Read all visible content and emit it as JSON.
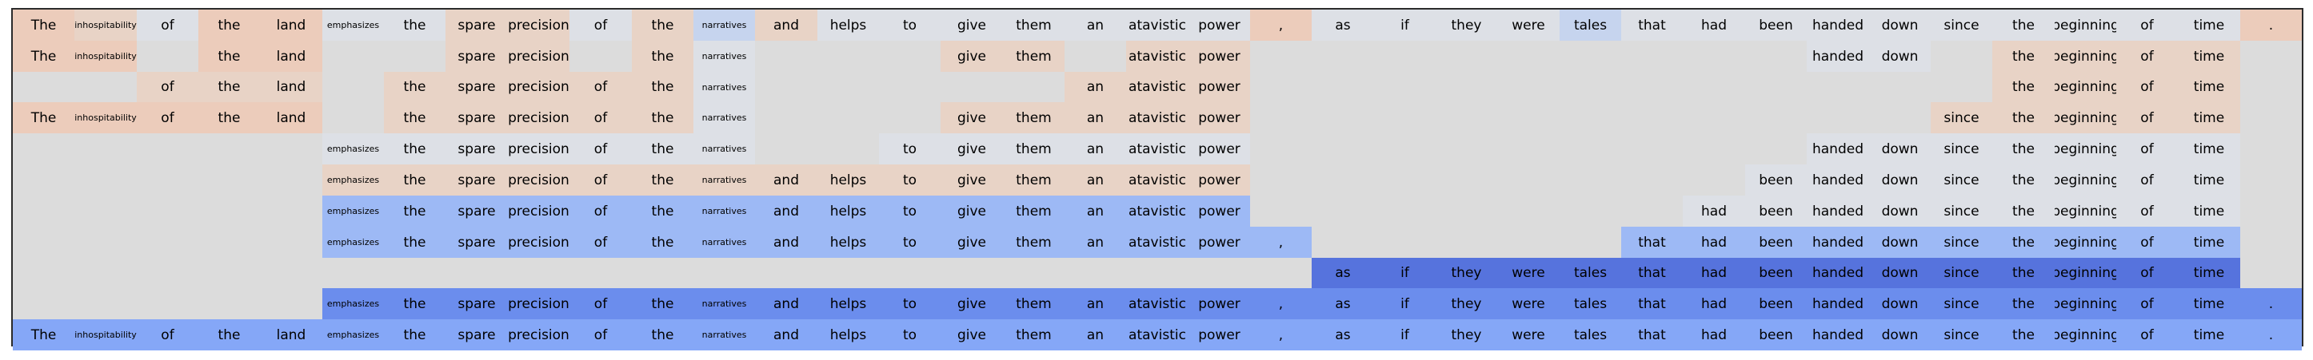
{
  "chart_data": {
    "type": "heatmap",
    "tokens": [
      "The",
      "inhospitability",
      "of",
      "the",
      "land",
      "emphasizes",
      "the",
      "spare",
      "precision",
      "of",
      "the",
      "narratives",
      "and",
      "helps",
      "to",
      "give",
      "them",
      "an",
      "atavistic",
      "power",
      ",",
      "as",
      "if",
      "they",
      "were",
      "tales",
      "that",
      "had",
      "been",
      "handed",
      "down",
      "since",
      "the",
      "beginning",
      "of",
      "time",
      "."
    ],
    "small_tokens": [
      1,
      5,
      11
    ],
    "colors": {
      "empty": "#dcdcdc",
      "a": "#e8d3c6",
      "b": "#ecccbb",
      "c": "#dde0e6",
      "d": "#c6d4ee",
      "e": "#9db9f5",
      "f": "#85a7f7",
      "g": "#6b8ded",
      "h": "#5673dd"
    },
    "rows": [
      {
        "shown": [
          0,
          1,
          2,
          3,
          4,
          5,
          6,
          7,
          8,
          9,
          10,
          11,
          12,
          13,
          14,
          15,
          16,
          17,
          18,
          19,
          20,
          21,
          22,
          23,
          24,
          25,
          26,
          27,
          28,
          29,
          30,
          31,
          32,
          33,
          34,
          35,
          36
        ],
        "shade": [
          "b",
          "a",
          "c",
          "b",
          "b",
          "c",
          "c",
          "a",
          "a",
          "c",
          "a",
          "d",
          "a",
          "c",
          "c",
          "c",
          "c",
          "c",
          "c",
          "c",
          "b",
          "c",
          "c",
          "c",
          "c",
          "d",
          "c",
          "c",
          "c",
          "c",
          "c",
          "c",
          "c",
          "c",
          "c",
          "c",
          "b"
        ]
      },
      {
        "shown": [
          0,
          1,
          3,
          4,
          7,
          8,
          10,
          11,
          15,
          16,
          18,
          19,
          29,
          30,
          32,
          33,
          34,
          35
        ],
        "shade": [
          "b",
          "b",
          "empty",
          "b",
          "b",
          "empty",
          "empty",
          "a",
          "a",
          "empty",
          "a",
          "c",
          "empty",
          "empty",
          "empty",
          "a",
          "a",
          "empty",
          "a",
          "a",
          "empty",
          "empty",
          "empty",
          "empty",
          "empty",
          "empty",
          "empty",
          "empty",
          "empty",
          "c",
          "c",
          "empty",
          "a",
          "a",
          "a",
          "a",
          "empty"
        ]
      },
      {
        "shown": [
          2,
          3,
          4,
          6,
          7,
          8,
          9,
          10,
          11,
          17,
          18,
          19,
          32,
          33,
          34,
          35
        ],
        "shade": [
          "empty",
          "empty",
          "a",
          "a",
          "a",
          "empty",
          "a",
          "a",
          "a",
          "a",
          "a",
          "c",
          "empty",
          "empty",
          "empty",
          "empty",
          "empty",
          "a",
          "a",
          "a",
          "empty",
          "empty",
          "empty",
          "empty",
          "empty",
          "empty",
          "empty",
          "empty",
          "empty",
          "empty",
          "empty",
          "empty",
          "a",
          "a",
          "a",
          "a",
          "empty"
        ]
      },
      {
        "shown": [
          0,
          1,
          2,
          3,
          4,
          6,
          7,
          8,
          9,
          10,
          11,
          15,
          16,
          17,
          18,
          19,
          31,
          32,
          33,
          34,
          35
        ],
        "shade": [
          "b",
          "b",
          "b",
          "b",
          "b",
          "empty",
          "a",
          "a",
          "a",
          "a",
          "a",
          "c",
          "empty",
          "empty",
          "empty",
          "a",
          "a",
          "a",
          "a",
          "a",
          "empty",
          "empty",
          "empty",
          "empty",
          "empty",
          "empty",
          "empty",
          "empty",
          "empty",
          "empty",
          "empty",
          "a",
          "a",
          "a",
          "a",
          "a",
          "empty"
        ]
      },
      {
        "shown": [
          5,
          6,
          7,
          8,
          9,
          10,
          11,
          14,
          15,
          16,
          17,
          18,
          19,
          29,
          30,
          31,
          32,
          33,
          34,
          35
        ],
        "shade": [
          "empty",
          "empty",
          "empty",
          "empty",
          "empty",
          "c",
          "c",
          "c",
          "c",
          "c",
          "c",
          "c",
          "empty",
          "empty",
          "c",
          "c",
          "c",
          "c",
          "c",
          "c",
          "empty",
          "empty",
          "empty",
          "empty",
          "empty",
          "empty",
          "empty",
          "empty",
          "empty",
          "c",
          "c",
          "c",
          "c",
          "c",
          "c",
          "c",
          "empty"
        ]
      },
      {
        "shown": [
          5,
          6,
          7,
          8,
          9,
          10,
          11,
          12,
          13,
          14,
          15,
          16,
          17,
          18,
          19,
          28,
          29,
          30,
          31,
          32,
          33,
          34,
          35
        ],
        "shade": [
          "empty",
          "empty",
          "empty",
          "empty",
          "empty",
          "a",
          "a",
          "a",
          "a",
          "a",
          "a",
          "a",
          "a",
          "a",
          "a",
          "a",
          "a",
          "a",
          "a",
          "a",
          "empty",
          "empty",
          "empty",
          "empty",
          "empty",
          "empty",
          "empty",
          "empty",
          "c",
          "c",
          "c",
          "c",
          "c",
          "c",
          "c",
          "c",
          "empty"
        ]
      },
      {
        "shown": [
          5,
          6,
          7,
          8,
          9,
          10,
          11,
          12,
          13,
          14,
          15,
          16,
          17,
          18,
          19,
          27,
          28,
          29,
          30,
          31,
          32,
          33,
          34,
          35
        ],
        "shade": [
          "empty",
          "empty",
          "empty",
          "empty",
          "empty",
          "e",
          "e",
          "e",
          "e",
          "e",
          "e",
          "e",
          "e",
          "e",
          "e",
          "e",
          "e",
          "e",
          "e",
          "e",
          "empty",
          "empty",
          "empty",
          "empty",
          "empty",
          "empty",
          "empty",
          "c",
          "c",
          "c",
          "c",
          "c",
          "c",
          "c",
          "c",
          "c",
          "empty"
        ]
      },
      {
        "shown": [
          5,
          6,
          7,
          8,
          9,
          10,
          11,
          12,
          13,
          14,
          15,
          16,
          17,
          18,
          19,
          20,
          26,
          27,
          28,
          29,
          30,
          31,
          32,
          33,
          34,
          35
        ],
        "shade": [
          "empty",
          "empty",
          "empty",
          "empty",
          "empty",
          "e",
          "e",
          "e",
          "e",
          "e",
          "e",
          "e",
          "e",
          "e",
          "e",
          "e",
          "e",
          "e",
          "e",
          "e",
          "e",
          "empty",
          "empty",
          "empty",
          "empty",
          "empty",
          "e",
          "e",
          "e",
          "e",
          "e",
          "e",
          "e",
          "e",
          "e",
          "e",
          "empty"
        ]
      },
      {
        "shown": [
          21,
          22,
          23,
          24,
          25,
          26,
          27,
          28,
          29,
          30,
          31,
          32,
          33,
          34,
          35
        ],
        "shade": [
          "empty",
          "empty",
          "empty",
          "empty",
          "empty",
          "empty",
          "empty",
          "empty",
          "empty",
          "empty",
          "empty",
          "empty",
          "empty",
          "empty",
          "empty",
          "empty",
          "empty",
          "empty",
          "empty",
          "empty",
          "empty",
          "h",
          "h",
          "h",
          "h",
          "h",
          "h",
          "h",
          "h",
          "h",
          "h",
          "h",
          "h",
          "h",
          "h",
          "h",
          "empty"
        ]
      },
      {
        "shown": [
          5,
          6,
          7,
          8,
          9,
          10,
          11,
          12,
          13,
          14,
          15,
          16,
          17,
          18,
          19,
          20,
          21,
          22,
          23,
          24,
          25,
          26,
          27,
          28,
          29,
          30,
          31,
          32,
          33,
          34,
          35,
          36
        ],
        "shade": [
          "empty",
          "empty",
          "empty",
          "empty",
          "empty",
          "g",
          "g",
          "g",
          "g",
          "g",
          "g",
          "g",
          "g",
          "g",
          "g",
          "g",
          "g",
          "g",
          "g",
          "g",
          "g",
          "g",
          "g",
          "g",
          "g",
          "g",
          "g",
          "g",
          "g",
          "g",
          "g",
          "g",
          "g",
          "g",
          "g",
          "g",
          "g"
        ]
      },
      {
        "shown": [
          0,
          1,
          2,
          3,
          4,
          5,
          6,
          7,
          8,
          9,
          10,
          11,
          12,
          13,
          14,
          15,
          16,
          17,
          18,
          19,
          20,
          21,
          22,
          23,
          24,
          25,
          26,
          27,
          28,
          29,
          30,
          31,
          32,
          33,
          34,
          35,
          36
        ],
        "shade": [
          "f",
          "f",
          "f",
          "f",
          "f",
          "f",
          "f",
          "f",
          "f",
          "f",
          "f",
          "f",
          "f",
          "f",
          "f",
          "f",
          "f",
          "f",
          "f",
          "f",
          "f",
          "f",
          "f",
          "f",
          "f",
          "f",
          "f",
          "f",
          "f",
          "f",
          "f",
          "f",
          "f",
          "f",
          "f",
          "f",
          "f"
        ]
      }
    ]
  }
}
